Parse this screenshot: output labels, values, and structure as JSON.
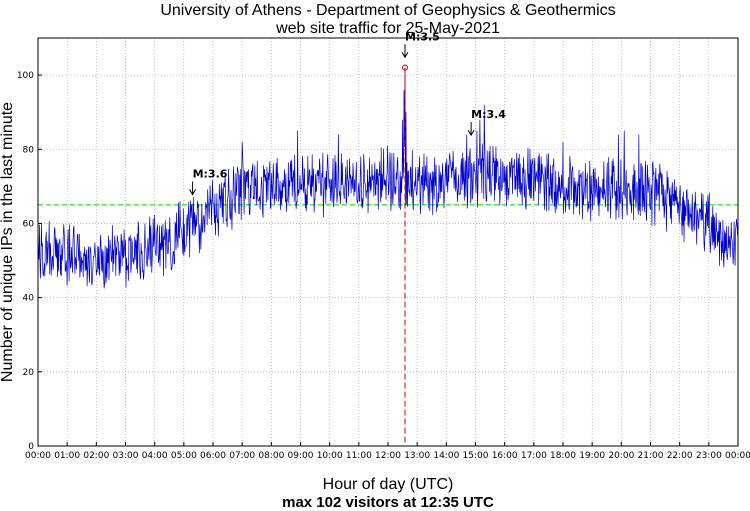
{
  "chart_data": {
    "type": "line",
    "title": "University of Athens - Department of Geophysics & Geothermics",
    "subtitle": "web site traffic for 25-May-2021",
    "xlabel": "Hour of day (UTC)",
    "footer": "max 102 visitors at 12:35 UTC",
    "ylabel": "Number of unique IPs in the last minute",
    "xlim": [
      0,
      24
    ],
    "ylim": [
      0,
      110
    ],
    "yticks": [
      0,
      20,
      40,
      60,
      80,
      100
    ],
    "xticks": [
      "00:00",
      "01:00",
      "02:00",
      "03:00",
      "04:00",
      "05:00",
      "06:00",
      "07:00",
      "08:00",
      "09:00",
      "10:00",
      "11:00",
      "12:00",
      "13:00",
      "14:00",
      "15:00",
      "16:00",
      "17:00",
      "18:00",
      "19:00",
      "20:00",
      "21:00",
      "22:00",
      "23:00",
      "00:00"
    ],
    "grid": true,
    "series_color": "#0000cc",
    "baseline": {
      "value": 65,
      "color": "#00cc00"
    },
    "max_marker": {
      "hour": 12.583,
      "value": 102,
      "color": "#cc0000"
    },
    "trend": [
      [
        0,
        54
      ],
      [
        0.5,
        53
      ],
      [
        1,
        52
      ],
      [
        1.5,
        51
      ],
      [
        2,
        50
      ],
      [
        2.5,
        50.5
      ],
      [
        3,
        51
      ],
      [
        3.5,
        52
      ],
      [
        4,
        53
      ],
      [
        4.5,
        55
      ],
      [
        5,
        58
      ],
      [
        5.5,
        61
      ],
      [
        6,
        64
      ],
      [
        6.5,
        67
      ],
      [
        7,
        69
      ],
      [
        7.5,
        70
      ],
      [
        8,
        70
      ],
      [
        8.5,
        70.5
      ],
      [
        9,
        71
      ],
      [
        9.5,
        71
      ],
      [
        10,
        71
      ],
      [
        10.5,
        71
      ],
      [
        11,
        71
      ],
      [
        11.5,
        71.5
      ],
      [
        12,
        72
      ],
      [
        12.5,
        72
      ],
      [
        13,
        71
      ],
      [
        13.5,
        70.5
      ],
      [
        14,
        71
      ],
      [
        14.5,
        72
      ],
      [
        15,
        73
      ],
      [
        15.5,
        73
      ],
      [
        16,
        72
      ],
      [
        16.5,
        72
      ],
      [
        17,
        72
      ],
      [
        17.5,
        71
      ],
      [
        18,
        70
      ],
      [
        18.5,
        69
      ],
      [
        19,
        69
      ],
      [
        19.5,
        70
      ],
      [
        20,
        70
      ],
      [
        20.5,
        69
      ],
      [
        21,
        68
      ],
      [
        21.5,
        67
      ],
      [
        22,
        65
      ],
      [
        22.5,
        62
      ],
      [
        23,
        59
      ],
      [
        23.5,
        57
      ],
      [
        24,
        56
      ]
    ],
    "spikes": [
      [
        12.5,
        88
      ],
      [
        12.55,
        96
      ],
      [
        12.583,
        102
      ],
      [
        12.62,
        90
      ],
      [
        15.05,
        85
      ],
      [
        15.15,
        88
      ],
      [
        15.3,
        92
      ],
      [
        14.7,
        84
      ],
      [
        20.1,
        85
      ],
      [
        19.9,
        84
      ],
      [
        10.3,
        84
      ],
      [
        8.9,
        85
      ],
      [
        7.0,
        82
      ],
      [
        20.6,
        84
      ],
      [
        18.0,
        82
      ]
    ],
    "earthquakes": [
      {
        "label": "M:3.6",
        "hour": 5.3,
        "value": 67
      },
      {
        "label": "M:3.5",
        "hour": 12.583,
        "value": 104
      },
      {
        "label": "M:3.4",
        "hour": 14.85,
        "value": 83
      }
    ]
  }
}
